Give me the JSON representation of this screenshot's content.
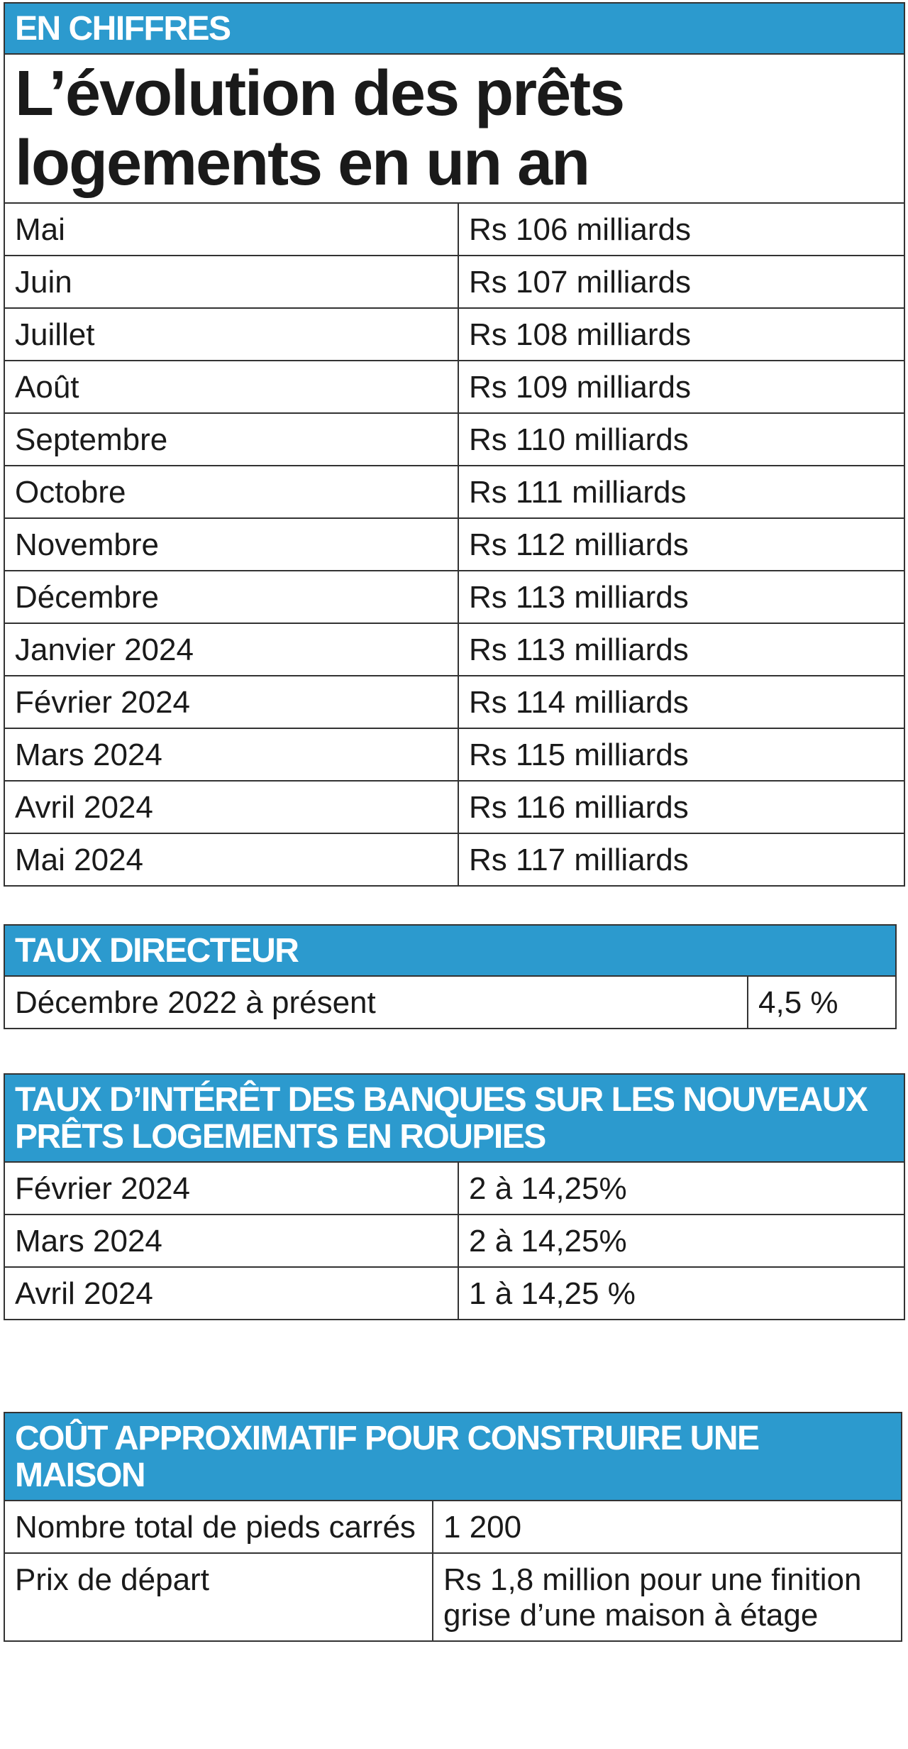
{
  "header": {
    "label": "EN CHIFFRES",
    "title": "L’évolution des prêts logements en un an"
  },
  "sections": [
    {
      "rows": [
        [
          "Mai",
          "Rs 106 milliards"
        ],
        [
          "Juin",
          "Rs 107 milliards"
        ],
        [
          "Juillet",
          "Rs 108 milliards"
        ],
        [
          "Août",
          "Rs 109 milliards"
        ],
        [
          "Septembre",
          "Rs 110 milliards"
        ],
        [
          "Octobre",
          "Rs 111 milliards"
        ],
        [
          "Novembre",
          "Rs 112 milliards"
        ],
        [
          "Décembre",
          "Rs 113 milliards"
        ],
        [
          "Janvier 2024",
          "Rs 113 milliards"
        ],
        [
          "Février 2024",
          "Rs 114 milliards"
        ],
        [
          "Mars 2024",
          "Rs 115 milliards"
        ],
        [
          "Avril 2024",
          "Rs 116 milliards"
        ],
        [
          "Mai 2024",
          "Rs 117 milliards"
        ]
      ]
    },
    {
      "title": "TAUX DIRECTEUR",
      "rows": [
        [
          "Décembre 2022 à présent",
          "4,5 %"
        ]
      ]
    },
    {
      "title": "TAUX D’INTÉRÊT DES BANQUES SUR LES NOUVEAUX PRÊTS LOGEMENTS EN ROUPIES",
      "rows": [
        [
          "Février 2024",
          "2 à 14,25%"
        ],
        [
          "Mars 2024",
          "2 à 14,25%"
        ],
        [
          "Avril 2024",
          "1 à 14,25 %"
        ]
      ]
    },
    {
      "title": "COÛT APPROXIMATIF POUR CONSTRUIRE UNE MAISON",
      "rows": [
        [
          "Nombre total de pieds carrés",
          "1 200"
        ],
        [
          "Prix de départ",
          "Rs 1,8 million pour une finition grise d’une maison à étage"
        ]
      ]
    }
  ]
}
